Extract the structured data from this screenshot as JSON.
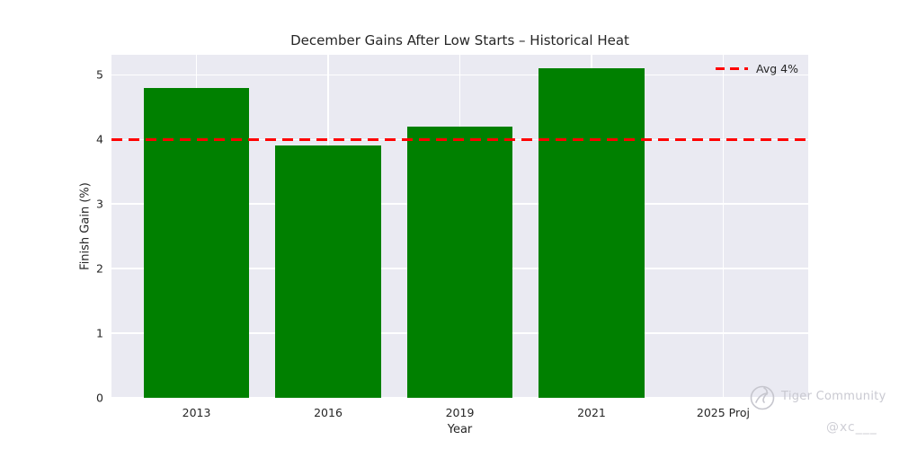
{
  "chart_data": {
    "type": "bar",
    "title": "December Gains After Low Starts – Historical Heat",
    "xlabel": "Year",
    "ylabel": "Finish Gain (%)",
    "categories": [
      "2013",
      "2016",
      "2019",
      "2021",
      "2025 Proj"
    ],
    "values": [
      4.8,
      3.9,
      4.2,
      5.1,
      0
    ],
    "yticks": [
      0,
      1,
      2,
      3,
      4,
      5
    ],
    "ylim": [
      0,
      5.31
    ],
    "grid": true,
    "legend_position": "upper right",
    "bar_color": "#008000",
    "plot_bg_color": "#eaeaf2",
    "grid_color": "#ffffff",
    "reference_line": {
      "value": 4,
      "label": "Avg 4%",
      "color": "#ff0000",
      "style": "dashed"
    }
  },
  "watermark": {
    "brand": "Tiger Community",
    "handle": "@xc___",
    "logo": "phone-in-circle-logo",
    "color": "#c9c9d1"
  }
}
